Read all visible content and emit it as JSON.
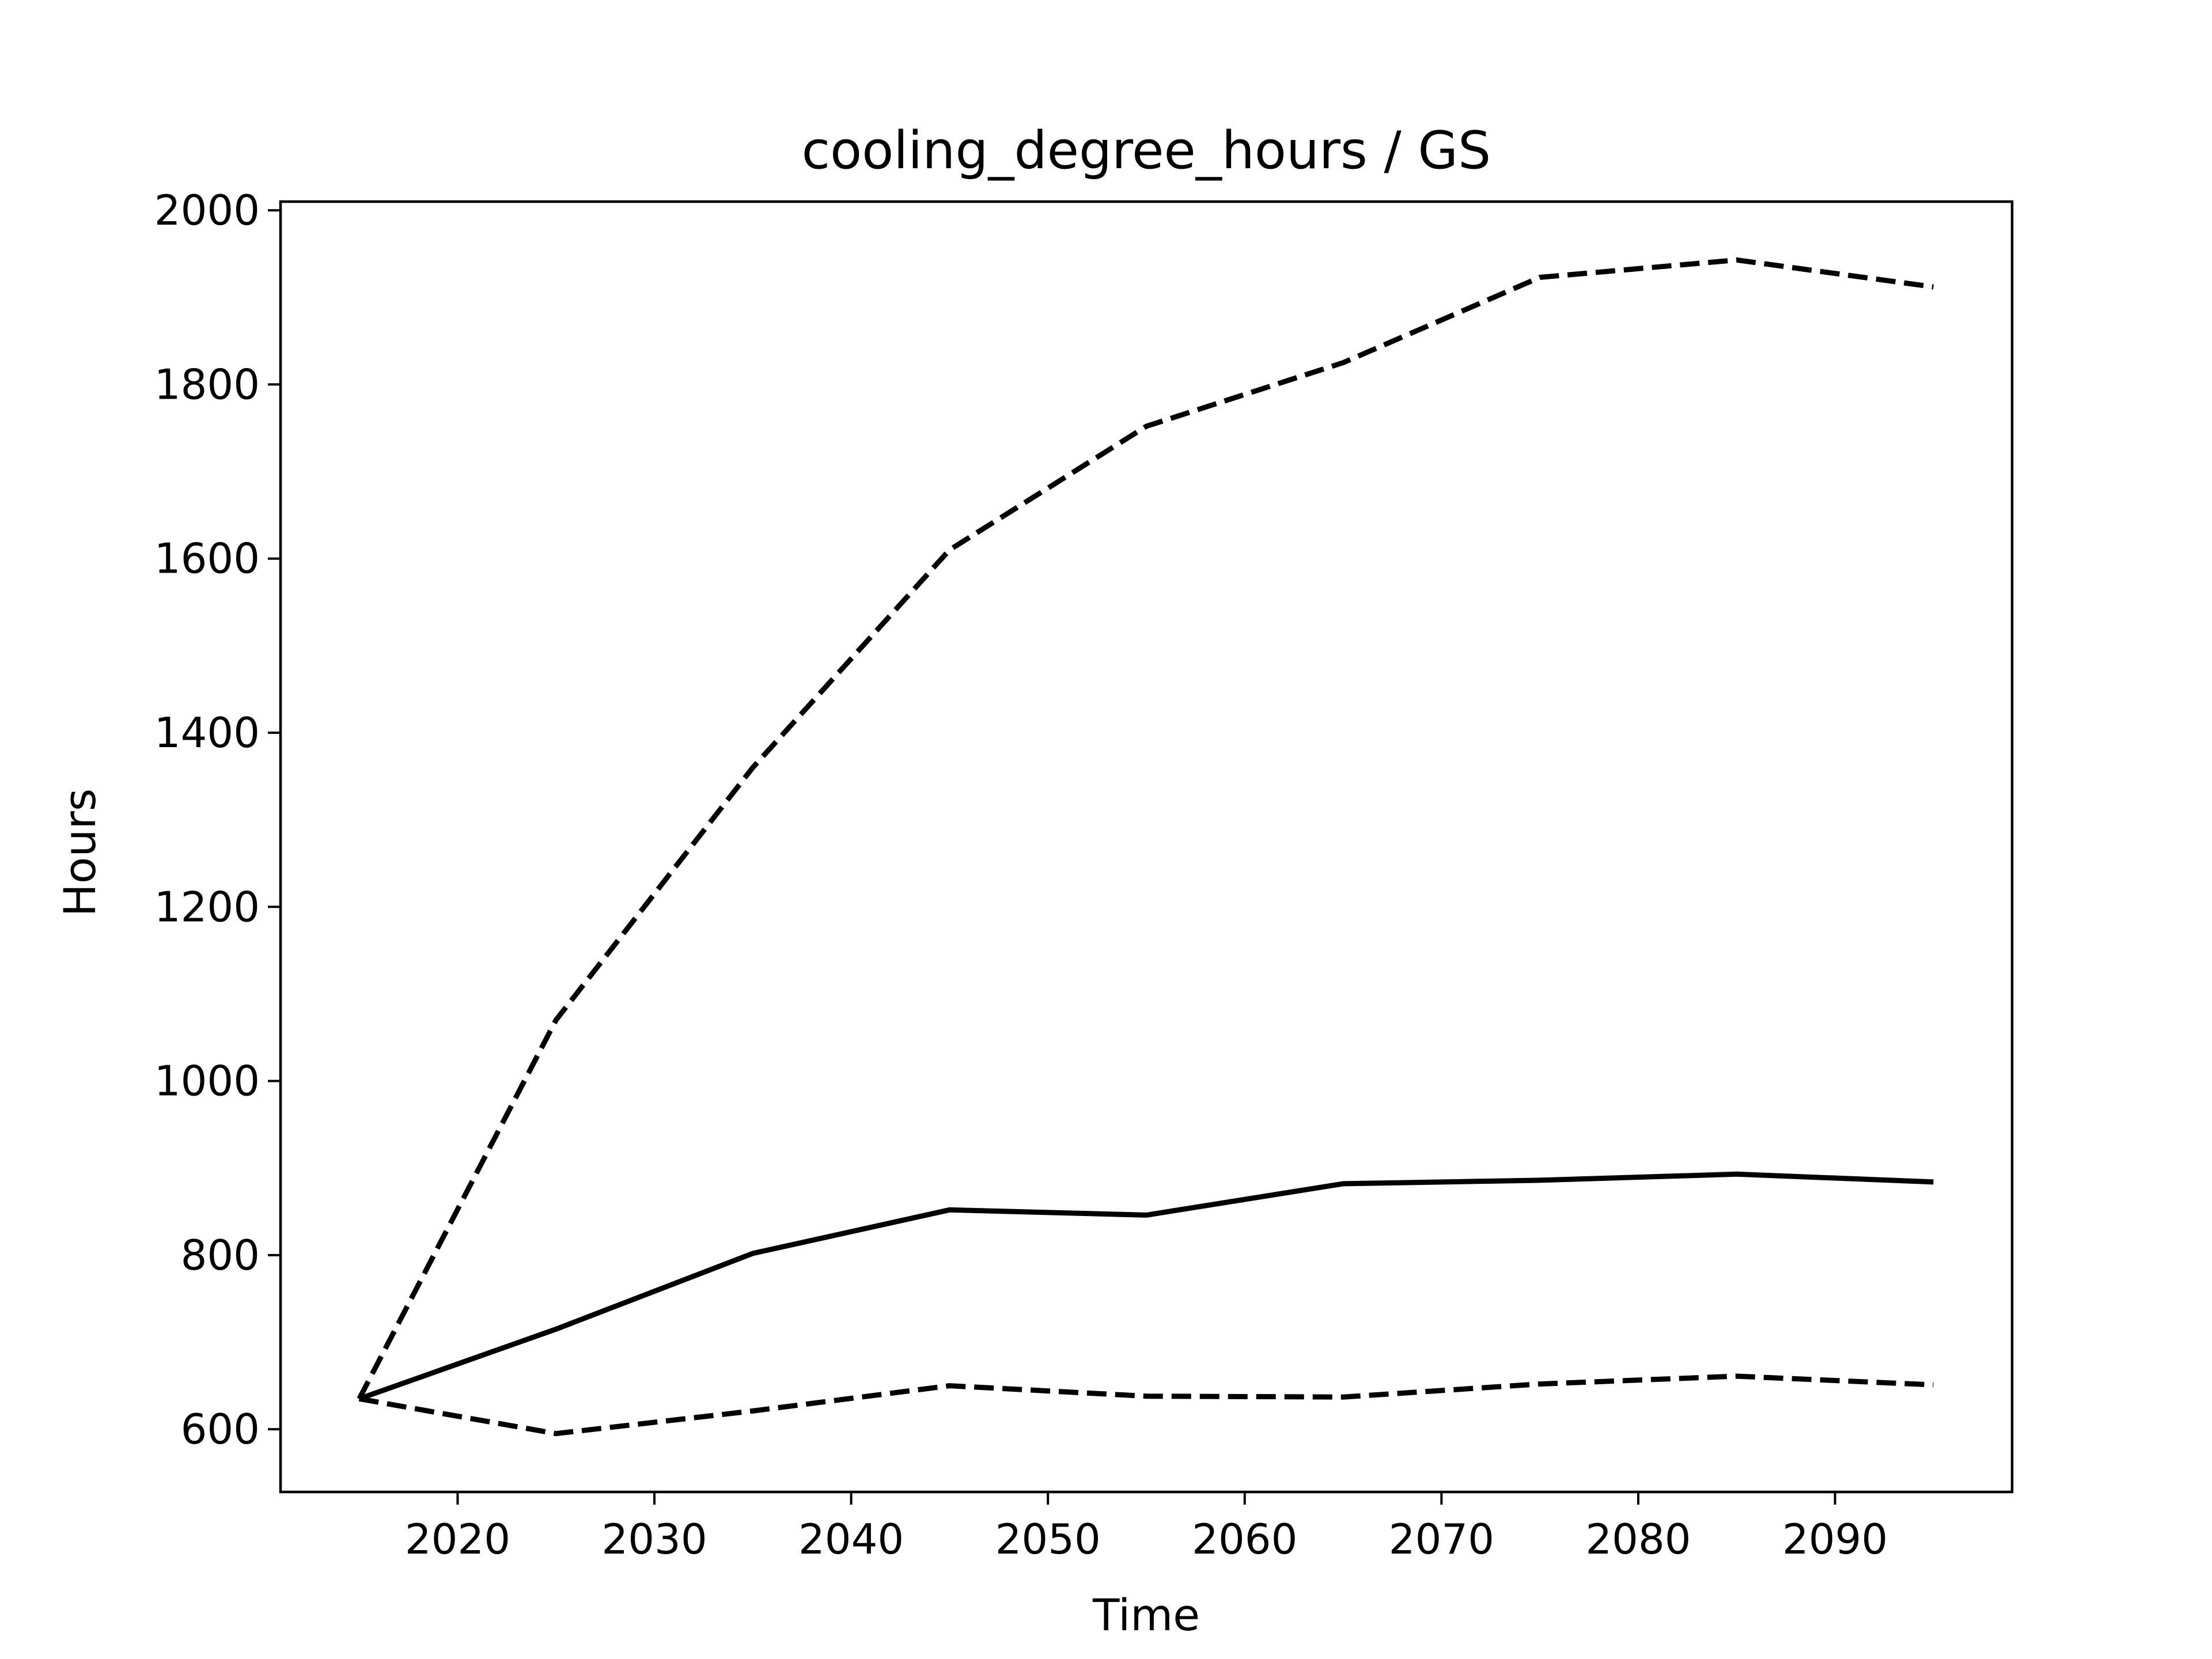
{
  "chart_data": {
    "type": "line",
    "title": "cooling_degree_hours / GS",
    "xlabel": "Time",
    "ylabel": "Hours",
    "xlim": [
      2011,
      2099
    ],
    "ylim": [
      528,
      2010
    ],
    "x_ticks": [
      2020,
      2030,
      2040,
      2050,
      2060,
      2070,
      2080,
      2090
    ],
    "y_ticks": [
      600,
      800,
      1000,
      1200,
      1400,
      1600,
      1800,
      2000
    ],
    "grid": false,
    "legend": "none",
    "x": [
      2015,
      2025,
      2035,
      2045,
      2055,
      2065,
      2075,
      2085,
      2095
    ],
    "series": [
      {
        "values": [
          635,
          715,
          802,
          852,
          846,
          882,
          886,
          893,
          884
        ],
        "style": "solid",
        "color": "#000000"
      },
      {
        "values": [
          635,
          1070,
          1360,
          1610,
          1752,
          1825,
          1923,
          1943,
          1912
        ],
        "style": "dashed",
        "color": "#000000"
      },
      {
        "values": [
          635,
          595,
          621,
          650,
          638,
          637,
          652,
          661,
          651
        ],
        "style": "dashed",
        "color": "#000000"
      }
    ]
  }
}
